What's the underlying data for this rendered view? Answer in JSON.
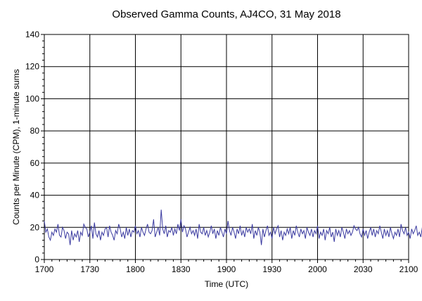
{
  "chart_data": {
    "type": "line",
    "title": "Observed Gamma Counts, AJ4CO, 31 May 2018",
    "xlabel": "Time (UTC)",
    "ylabel": "Counts per Minute (CPM), 1-minute sums",
    "xlim": [
      0,
      400
    ],
    "ylim": [
      0,
      140
    ],
    "x_ticks": [
      {
        "pos": 0,
        "label": "1700"
      },
      {
        "pos": 30,
        "label": "1730"
      },
      {
        "pos": 60,
        "label": "1800"
      },
      {
        "pos": 90,
        "label": "1830"
      },
      {
        "pos": 120,
        "label": "1900"
      },
      {
        "pos": 150,
        "label": "1930"
      },
      {
        "pos": 180,
        "label": "2000"
      },
      {
        "pos": 210,
        "label": "2030"
      },
      {
        "pos": 240,
        "label": "2100"
      }
    ],
    "y_ticks": [
      {
        "val": 0,
        "label": "0"
      },
      {
        "val": 20,
        "label": "20"
      },
      {
        "val": 40,
        "label": "40"
      },
      {
        "val": 60,
        "label": "60"
      },
      {
        "val": 80,
        "label": "80"
      },
      {
        "val": 100,
        "label": "100"
      },
      {
        "val": 120,
        "label": "120"
      },
      {
        "val": 140,
        "label": "140"
      }
    ],
    "grid": true,
    "series": [
      {
        "color": "#3a3aa0",
        "x_start": "1700",
        "x_step_minutes": 1,
        "values": [
          24,
          17,
          19,
          14,
          12,
          17,
          15,
          19,
          17,
          22,
          15,
          14,
          20,
          18,
          13,
          17,
          16,
          9,
          18,
          12,
          16,
          14,
          18,
          11,
          17,
          15,
          22,
          20,
          19,
          14,
          17,
          21,
          13,
          23,
          16,
          14,
          18,
          12,
          17,
          15,
          19,
          20,
          14,
          21,
          17,
          15,
          12,
          18,
          16,
          22,
          19,
          14,
          17,
          13,
          20,
          15,
          19,
          14,
          18,
          17,
          21,
          16,
          18,
          14,
          20,
          17,
          15,
          19,
          22,
          17,
          16,
          18,
          25,
          14,
          17,
          20,
          15,
          31,
          19,
          16,
          21,
          14,
          18,
          17,
          20,
          15,
          19,
          16,
          22,
          18,
          25,
          17,
          21,
          19,
          14,
          17,
          20,
          16,
          18,
          15,
          19,
          13,
          22,
          17,
          16,
          20,
          15,
          18,
          14,
          17,
          21,
          16,
          19,
          13,
          18,
          15,
          20,
          17,
          14,
          19,
          16,
          24,
          18,
          15,
          20,
          17,
          13,
          19,
          16,
          21,
          15,
          18,
          14,
          20,
          17,
          19,
          16,
          22,
          13,
          18,
          15,
          20,
          17,
          9,
          19,
          14,
          18,
          21,
          15,
          17,
          13,
          20,
          16,
          19,
          21,
          14,
          18,
          12,
          17,
          15,
          19,
          16,
          20,
          13,
          18,
          15,
          21,
          17,
          14,
          19,
          16,
          18,
          13,
          20,
          17,
          15,
          19,
          14,
          18,
          16,
          21,
          13,
          17,
          15,
          19,
          12,
          18,
          16,
          20,
          14,
          17,
          11,
          19,
          15,
          18,
          14,
          20,
          17,
          13,
          19,
          16,
          18,
          15,
          17,
          21,
          19,
          18,
          20,
          16,
          14,
          19,
          15,
          18,
          13,
          17,
          20,
          15,
          19,
          14,
          18,
          16,
          21,
          17,
          13,
          19,
          15,
          18,
          14,
          20,
          16,
          13,
          17,
          15,
          19,
          14,
          22,
          18,
          16,
          20,
          15,
          17,
          13,
          19,
          16,
          18,
          21,
          15,
          17,
          14,
          20,
          16,
          18,
          15,
          19,
          22,
          27,
          17,
          16,
          20,
          14,
          18,
          15,
          19,
          17,
          21,
          16,
          18,
          20,
          15,
          17,
          14,
          19,
          16,
          18,
          13,
          20,
          17,
          15,
          19,
          14,
          22,
          18,
          16,
          11
        ]
      }
    ]
  }
}
